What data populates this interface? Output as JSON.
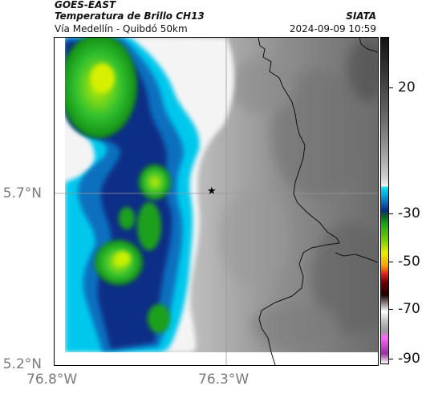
{
  "header": {
    "title": "GOES-EAST",
    "subtitle": "Temperatura de Brillo CH13",
    "location": "Vía Medellín - Quibdó 50km",
    "source": "SIATA",
    "timestamp": "2024-09-09 10:59"
  },
  "map": {
    "lat_labels": [
      "5.7°N",
      "5.2°N"
    ],
    "lon_labels": [
      "76.8°W",
      "76.3°W"
    ],
    "marker_icon": "star-icon"
  },
  "colorbar": {
    "tick_labels": [
      "20",
      "-30",
      "-50",
      "-70",
      "-90"
    ],
    "colors": [
      "#1a1a1a",
      "#555555",
      "#9a9a9a",
      "#d8d8d8",
      "#00d0f0",
      "#0a78c0",
      "#0a2f8a",
      "#1aa01a",
      "#a8f000",
      "#e8e800",
      "#ff9900",
      "#d01010",
      "#400000",
      "#ffffff",
      "#cc66cc"
    ]
  }
}
